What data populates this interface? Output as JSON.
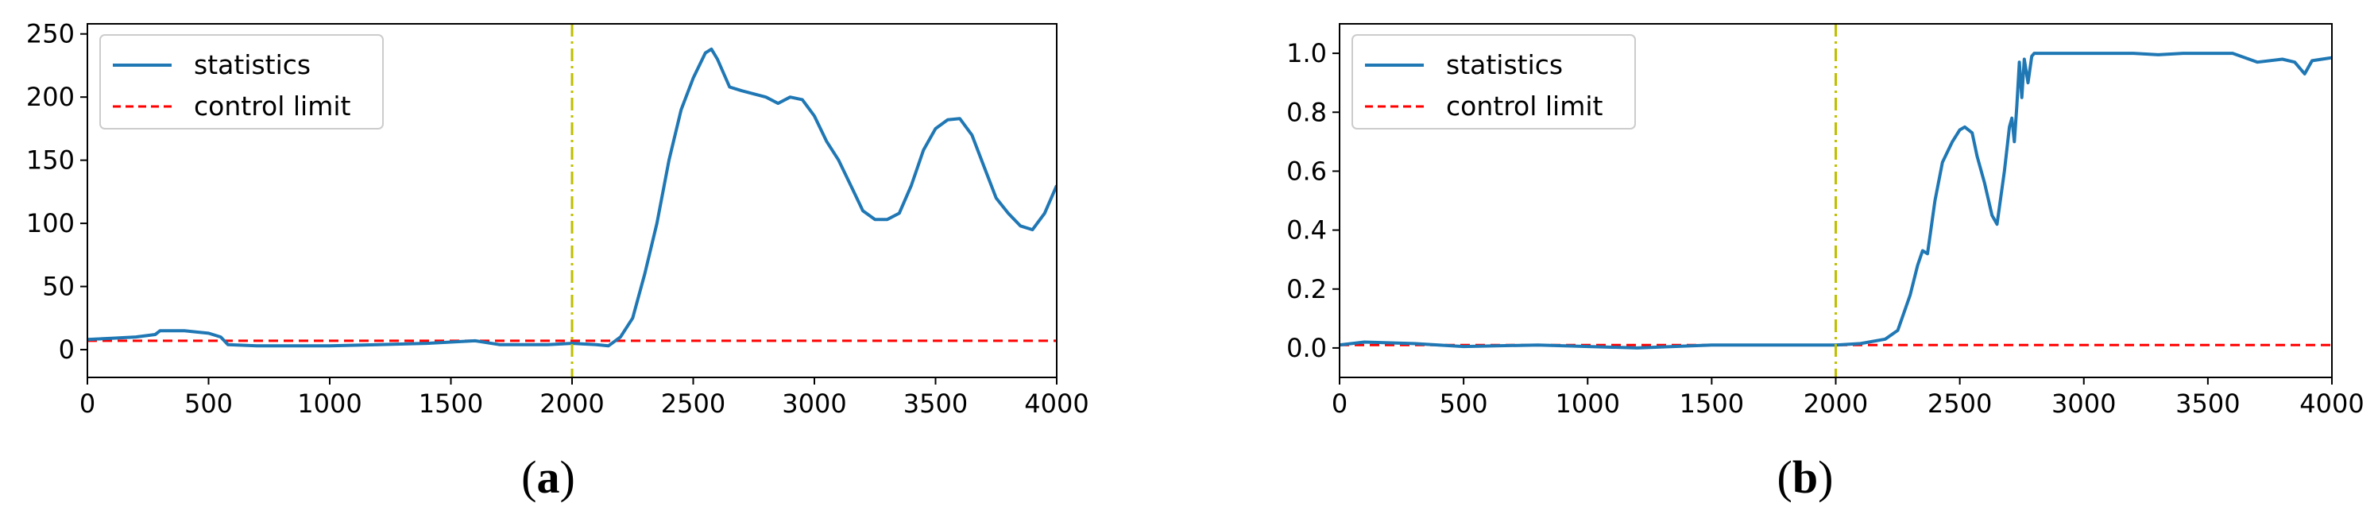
{
  "chart_data": [
    {
      "type": "line",
      "panel_label": "a",
      "xlim": [
        0,
        4000
      ],
      "ylim": [
        -22,
        258
      ],
      "xticks": [
        0,
        500,
        1000,
        1500,
        2000,
        2500,
        3000,
        3500,
        4000
      ],
      "yticks": [
        0,
        50,
        100,
        150,
        200,
        250
      ],
      "x_tick_labels": [
        "0",
        "500",
        "1000",
        "1500",
        "2000",
        "2500",
        "3000",
        "3500",
        "4000"
      ],
      "y_tick_labels": [
        "0",
        "50",
        "100",
        "150",
        "200",
        "250"
      ],
      "grid": false,
      "legend_position": "top-left",
      "series": [
        {
          "name": "statistics",
          "color": "#1f77b4",
          "style": "solid",
          "points": [
            [
              0,
              8
            ],
            [
              100,
              9
            ],
            [
              200,
              10
            ],
            [
              280,
              12
            ],
            [
              300,
              15
            ],
            [
              400,
              15
            ],
            [
              500,
              13
            ],
            [
              550,
              10
            ],
            [
              580,
              4
            ],
            [
              700,
              3
            ],
            [
              1000,
              3
            ],
            [
              1200,
              4
            ],
            [
              1400,
              5
            ],
            [
              1600,
              7
            ],
            [
              1700,
              4
            ],
            [
              1900,
              4
            ],
            [
              2000,
              5
            ],
            [
              2100,
              4
            ],
            [
              2150,
              3
            ],
            [
              2200,
              10
            ],
            [
              2250,
              25
            ],
            [
              2300,
              60
            ],
            [
              2350,
              100
            ],
            [
              2400,
              150
            ],
            [
              2450,
              190
            ],
            [
              2500,
              215
            ],
            [
              2550,
              235
            ],
            [
              2575,
              238
            ],
            [
              2600,
              230
            ],
            [
              2650,
              208
            ],
            [
              2700,
              205
            ],
            [
              2800,
              200
            ],
            [
              2850,
              195
            ],
            [
              2900,
              200
            ],
            [
              2950,
              198
            ],
            [
              3000,
              185
            ],
            [
              3050,
              165
            ],
            [
              3100,
              150
            ],
            [
              3150,
              130
            ],
            [
              3200,
              110
            ],
            [
              3250,
              103
            ],
            [
              3300,
              103
            ],
            [
              3350,
              108
            ],
            [
              3400,
              130
            ],
            [
              3450,
              158
            ],
            [
              3500,
              175
            ],
            [
              3550,
              182
            ],
            [
              3600,
              183
            ],
            [
              3650,
              170
            ],
            [
              3700,
              145
            ],
            [
              3750,
              120
            ],
            [
              3800,
              108
            ],
            [
              3850,
              98
            ],
            [
              3900,
              95
            ],
            [
              3950,
              108
            ],
            [
              4000,
              130
            ]
          ]
        },
        {
          "name": "control limit",
          "color": "#ff0000",
          "style": "dashed",
          "points": [
            [
              0,
              7
            ],
            [
              4000,
              7
            ]
          ]
        }
      ],
      "vertical_line": {
        "x": 2000,
        "color": "#bfbf00",
        "style": "dash-dot"
      }
    },
    {
      "type": "line",
      "panel_label": "b",
      "xlim": [
        0,
        4000
      ],
      "ylim": [
        -0.1,
        1.1
      ],
      "xticks": [
        0,
        500,
        1000,
        1500,
        2000,
        2500,
        3000,
        3500,
        4000
      ],
      "yticks": [
        0,
        0.2,
        0.4,
        0.6,
        0.8,
        1.0
      ],
      "x_tick_labels": [
        "0",
        "500",
        "1000",
        "1500",
        "2000",
        "2500",
        "3000",
        "3500",
        "4000"
      ],
      "y_tick_labels": [
        "0.0",
        "0.2",
        "0.4",
        "0.6",
        "0.8",
        "1.0"
      ],
      "grid": false,
      "legend_position": "top-left",
      "series": [
        {
          "name": "statistics",
          "color": "#1f77b4",
          "style": "solid",
          "points": [
            [
              0,
              0.01
            ],
            [
              100,
              0.02
            ],
            [
              300,
              0.015
            ],
            [
              500,
              0.005
            ],
            [
              800,
              0.01
            ],
            [
              1200,
              0.0
            ],
            [
              1500,
              0.01
            ],
            [
              1800,
              0.01
            ],
            [
              2000,
              0.01
            ],
            [
              2100,
              0.015
            ],
            [
              2200,
              0.03
            ],
            [
              2250,
              0.06
            ],
            [
              2300,
              0.18
            ],
            [
              2330,
              0.28
            ],
            [
              2350,
              0.33
            ],
            [
              2370,
              0.32
            ],
            [
              2400,
              0.5
            ],
            [
              2430,
              0.63
            ],
            [
              2470,
              0.7
            ],
            [
              2500,
              0.74
            ],
            [
              2520,
              0.75
            ],
            [
              2550,
              0.73
            ],
            [
              2570,
              0.65
            ],
            [
              2600,
              0.56
            ],
            [
              2630,
              0.45
            ],
            [
              2650,
              0.42
            ],
            [
              2680,
              0.6
            ],
            [
              2700,
              0.75
            ],
            [
              2710,
              0.78
            ],
            [
              2720,
              0.7
            ],
            [
              2730,
              0.82
            ],
            [
              2740,
              0.97
            ],
            [
              2750,
              0.85
            ],
            [
              2760,
              0.98
            ],
            [
              2775,
              0.9
            ],
            [
              2790,
              0.99
            ],
            [
              2800,
              1.0
            ],
            [
              3000,
              1.0
            ],
            [
              3200,
              1.0
            ],
            [
              3300,
              0.995
            ],
            [
              3400,
              1.0
            ],
            [
              3600,
              1.0
            ],
            [
              3700,
              0.97
            ],
            [
              3800,
              0.98
            ],
            [
              3850,
              0.97
            ],
            [
              3890,
              0.93
            ],
            [
              3920,
              0.975
            ],
            [
              3960,
              0.98
            ],
            [
              4000,
              0.985
            ]
          ]
        },
        {
          "name": "control limit",
          "color": "#ff0000",
          "style": "dashed",
          "points": [
            [
              0,
              0.01
            ],
            [
              4000,
              0.01
            ]
          ]
        }
      ],
      "vertical_line": {
        "x": 2000,
        "color": "#bfbf00",
        "style": "dash-dot"
      }
    }
  ]
}
